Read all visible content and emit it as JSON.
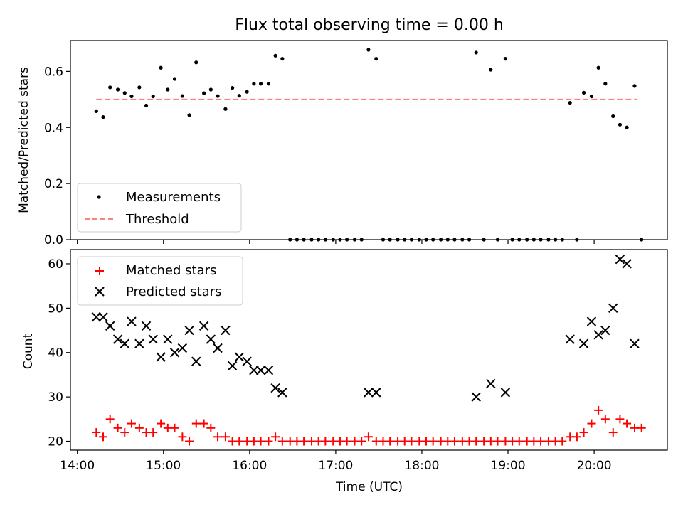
{
  "chart_data": [
    {
      "type": "scatter",
      "title": "Flux total observing time = 0.00 h",
      "xlabel": "",
      "ylabel": "Matched/Predicted stars",
      "xlim": [
        13.92,
        20.85
      ],
      "ylim": [
        0.0,
        0.71
      ],
      "yticks": [
        "0.0",
        "0.2",
        "0.4",
        "0.6"
      ],
      "ytick_values": [
        0.0,
        0.2,
        0.4,
        0.6
      ],
      "xtick_values": [
        14,
        15,
        16,
        17,
        18,
        19,
        20
      ],
      "legend": {
        "position": "lower-left",
        "entries": [
          "Measurements",
          "Threshold"
        ]
      },
      "threshold": {
        "name": "Threshold",
        "value": 0.5,
        "x_range": [
          14.22,
          20.5
        ],
        "color": "#ff7f7f"
      },
      "series": [
        {
          "name": "Measurements",
          "color": "#000000",
          "x": [
            14.22,
            14.3,
            14.38,
            14.47,
            14.55,
            14.63,
            14.72,
            14.8,
            14.88,
            14.97,
            15.05,
            15.13,
            15.22,
            15.3,
            15.38,
            15.47,
            15.55,
            15.63,
            15.72,
            15.8,
            15.88,
            15.97,
            16.05,
            16.13,
            16.22,
            16.3,
            16.38,
            16.47,
            16.55,
            16.63,
            16.72,
            16.8,
            16.88,
            16.97,
            17.05,
            17.13,
            17.22,
            17.3,
            17.38,
            17.47,
            17.55,
            17.63,
            17.72,
            17.8,
            17.88,
            17.97,
            18.05,
            18.13,
            18.22,
            18.3,
            18.38,
            18.47,
            18.55,
            18.63,
            18.72,
            18.8,
            18.88,
            18.97,
            19.05,
            19.13,
            19.22,
            19.3,
            19.38,
            19.47,
            19.55,
            19.63,
            19.72,
            19.8,
            19.88,
            19.97,
            20.05,
            20.13,
            20.22,
            20.3,
            20.38,
            20.47,
            20.55
          ],
          "y": [
            0.458,
            0.437,
            0.543,
            0.535,
            0.523,
            0.511,
            0.543,
            0.478,
            0.511,
            0.613,
            0.535,
            0.573,
            0.512,
            0.444,
            0.632,
            0.522,
            0.535,
            0.512,
            0.466,
            0.541,
            0.513,
            0.527,
            0.556,
            0.556,
            0.556,
            0.656,
            0.645,
            0,
            0,
            0,
            0,
            0,
            0,
            0,
            0,
            0,
            0,
            0,
            0.677,
            0.645,
            0,
            0,
            0,
            0,
            0,
            0,
            0,
            0,
            0,
            0,
            0,
            0,
            0,
            0.667,
            0,
            0.606,
            0,
            0.645,
            0,
            0,
            0,
            0,
            0,
            0,
            0,
            0,
            0.488,
            0,
            0.524,
            0.511,
            0.613,
            0.556,
            0.44,
            0.41,
            0.4,
            0.548,
            0
          ]
        }
      ]
    },
    {
      "type": "scatter",
      "title": "",
      "xlabel": "Time (UTC)",
      "ylabel": "Count",
      "xlim": [
        13.92,
        20.85
      ],
      "ylim": [
        18.0,
        63.2
      ],
      "yticks": [
        "20",
        "30",
        "40",
        "50",
        "60"
      ],
      "ytick_values": [
        20,
        30,
        40,
        50,
        60
      ],
      "xticks": [
        "14:00",
        "15:00",
        "16:00",
        "17:00",
        "18:00",
        "19:00",
        "20:00"
      ],
      "xtick_values": [
        14,
        15,
        16,
        17,
        18,
        19,
        20
      ],
      "legend": {
        "position": "upper-left",
        "entries": [
          "Matched stars",
          "Predicted stars"
        ]
      },
      "series": [
        {
          "name": "Matched stars",
          "marker": "+",
          "color": "#ff0000",
          "x": [
            14.22,
            14.3,
            14.38,
            14.47,
            14.55,
            14.63,
            14.72,
            14.8,
            14.88,
            14.97,
            15.05,
            15.13,
            15.22,
            15.3,
            15.38,
            15.47,
            15.55,
            15.63,
            15.72,
            15.8,
            15.88,
            15.97,
            16.05,
            16.13,
            16.22,
            16.3,
            16.38,
            16.47,
            16.55,
            16.63,
            16.72,
            16.8,
            16.88,
            16.97,
            17.05,
            17.13,
            17.22,
            17.3,
            17.38,
            17.47,
            17.55,
            17.63,
            17.72,
            17.8,
            17.88,
            17.97,
            18.05,
            18.13,
            18.22,
            18.3,
            18.38,
            18.47,
            18.55,
            18.63,
            18.72,
            18.8,
            18.88,
            18.97,
            19.05,
            19.13,
            19.22,
            19.3,
            19.38,
            19.47,
            19.55,
            19.63,
            19.72,
            19.8,
            19.88,
            19.97,
            20.05,
            20.13,
            20.22,
            20.3,
            20.38,
            20.47,
            20.55
          ],
          "y": [
            22,
            21,
            25,
            23,
            22,
            24,
            23,
            22,
            22,
            24,
            23,
            23,
            21,
            20,
            24,
            24,
            23,
            21,
            21,
            20,
            20,
            20,
            20,
            20,
            20,
            21,
            20,
            20,
            20,
            20,
            20,
            20,
            20,
            20,
            20,
            20,
            20,
            20,
            21,
            20,
            20,
            20,
            20,
            20,
            20,
            20,
            20,
            20,
            20,
            20,
            20,
            20,
            20,
            20,
            20,
            20,
            20,
            20,
            20,
            20,
            20,
            20,
            20,
            20,
            20,
            20,
            21,
            21,
            22,
            24,
            27,
            25,
            22,
            25,
            24,
            23,
            23
          ]
        },
        {
          "name": "Predicted stars",
          "marker": "x",
          "color": "#000000",
          "x": [
            14.22,
            14.3,
            14.38,
            14.47,
            14.55,
            14.63,
            14.72,
            14.8,
            14.88,
            14.97,
            15.05,
            15.13,
            15.22,
            15.3,
            15.38,
            15.47,
            15.55,
            15.63,
            15.72,
            15.8,
            15.88,
            15.97,
            16.05,
            16.13,
            16.22,
            16.3,
            16.38,
            17.38,
            17.47,
            18.63,
            18.8,
            18.97,
            19.72,
            19.88,
            19.97,
            20.05,
            20.13,
            20.22,
            20.3,
            20.38,
            20.47
          ],
          "y": [
            48,
            48,
            46,
            43,
            42,
            47,
            42,
            46,
            43,
            39,
            43,
            40,
            41,
            45,
            38,
            46,
            43,
            41,
            45,
            37,
            39,
            38,
            36,
            36,
            36,
            32,
            31,
            31,
            31,
            30,
            33,
            31,
            43,
            42,
            47,
            44,
            45,
            50,
            61,
            60,
            42
          ]
        }
      ]
    }
  ]
}
